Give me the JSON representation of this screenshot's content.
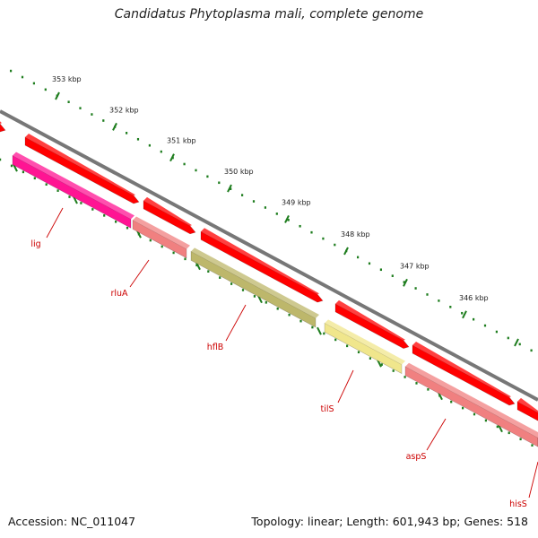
{
  "title": "Candidatus Phytoplasma mali, complete genome",
  "accession_label": "Accession: NC_011047",
  "summary_label": "Topology: linear; Length: 601,943 bp; Genes: 518",
  "kbp_unit": "kbp",
  "scale_ticks_kbp": [
    353,
    352,
    351,
    350,
    349,
    348,
    347,
    346
  ],
  "genes": [
    {
      "name": "lig",
      "color": "#ff1493"
    },
    {
      "name": "rluA",
      "color": "#f08080"
    },
    {
      "name": "hflB",
      "color": "#bdb76b"
    },
    {
      "name": "tilS",
      "color": "#f0e68c"
    },
    {
      "name": "aspS",
      "color": "#f08080"
    },
    {
      "name": "hisS",
      "color": "#f08080"
    }
  ],
  "colors": {
    "cds_forward": "#ff0000",
    "backbone": "#808080",
    "scale": "#1e7d1e",
    "label": "#cc0000"
  }
}
